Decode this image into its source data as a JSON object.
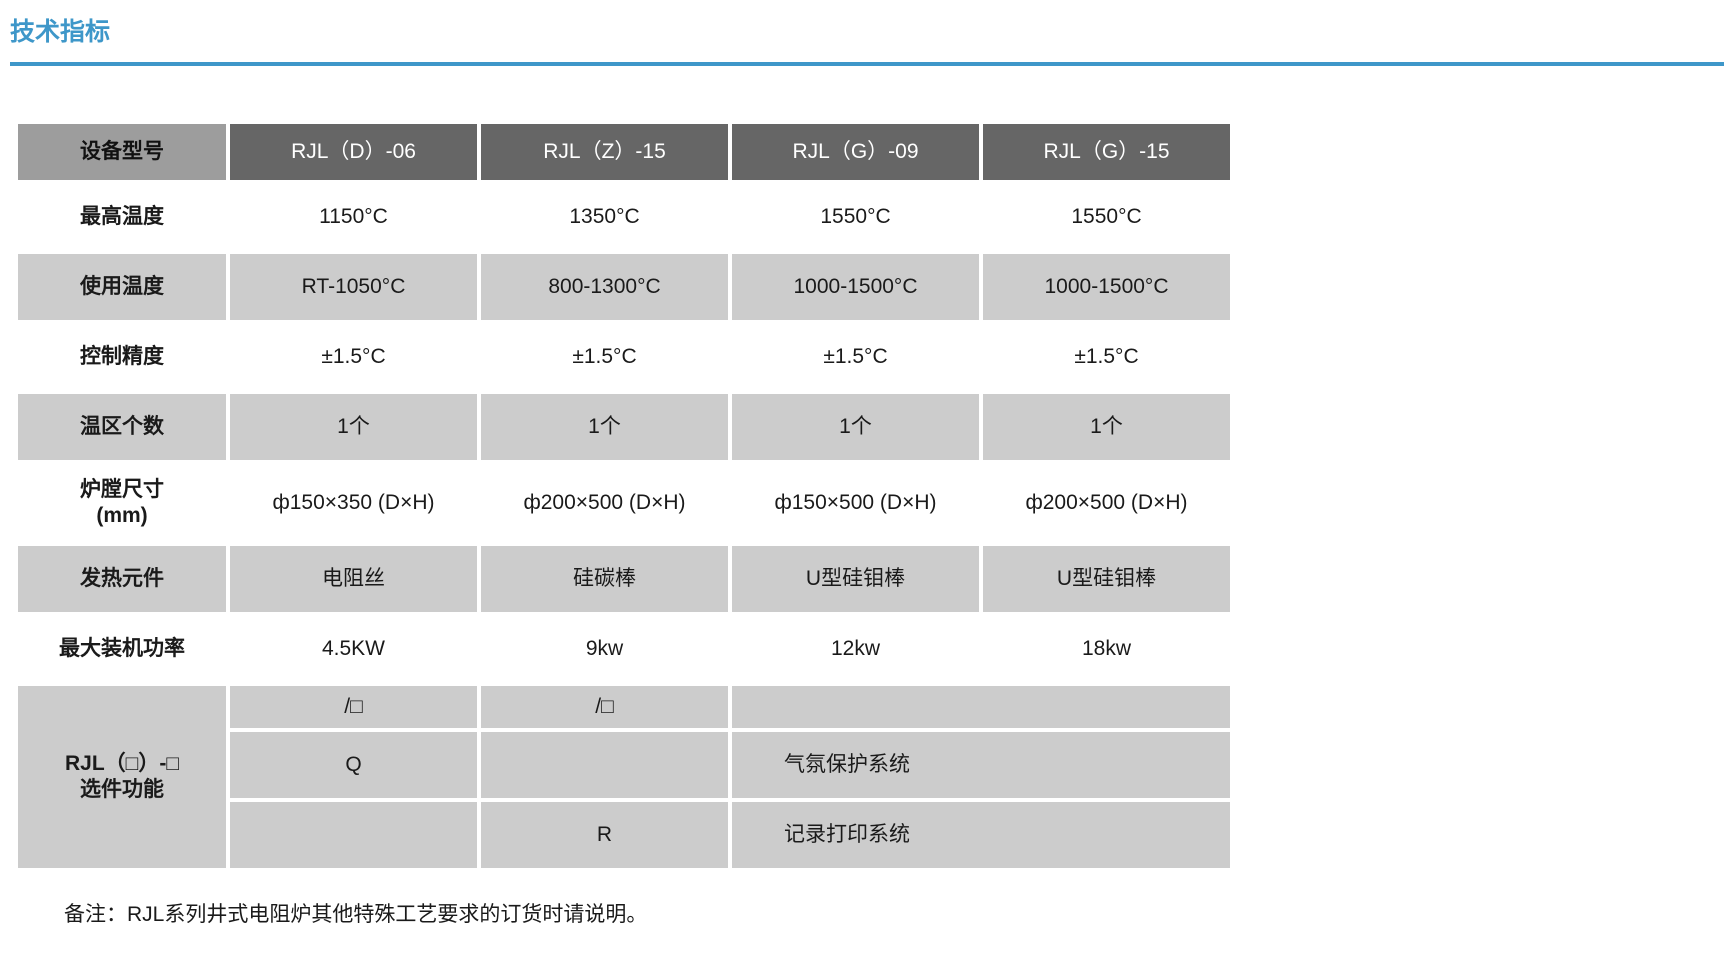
{
  "page": {
    "title": "技术指标",
    "note": "备注：RJL系列井式电阻炉其他特殊工艺要求的订货时请说明。"
  },
  "colors": {
    "accent_blue": "#3e97c9",
    "header_dark_gray": "#666666",
    "header_label_gray": "#9d9d9d",
    "row_gray": "#cccccc",
    "text": "#1a1a1a"
  },
  "table": {
    "header": {
      "label": "设备型号",
      "models": [
        "RJL（D）-06",
        "RJL（Z）-15",
        "RJL（G）-09",
        "RJL（G）-15"
      ]
    },
    "rows": [
      {
        "label": "最高温度",
        "values": [
          "1150°C",
          "1350°C",
          "1550°C",
          "1550°C"
        ]
      },
      {
        "label": "使用温度",
        "values": [
          "RT-1050°C",
          "800-1300°C",
          "1000-1500°C",
          "1000-1500°C"
        ]
      },
      {
        "label": "控制精度",
        "values": [
          "±1.5°C",
          "±1.5°C",
          "±1.5°C",
          "±1.5°C"
        ]
      },
      {
        "label": "温区个数",
        "values": [
          "1个",
          "1个",
          "1个",
          "1个"
        ]
      },
      {
        "label": "炉膛尺寸",
        "label_line2": "(mm)",
        "values": [
          "ф150×350 (D×H)",
          "ф200×500 (D×H)",
          "ф150×500 (D×H)",
          "ф200×500 (D×H)"
        ]
      },
      {
        "label": "发热元件",
        "values": [
          "电阻丝",
          "硅碳棒",
          "U型硅钼棒",
          "U型硅钼棒"
        ]
      },
      {
        "label": "最大装机功率",
        "values": [
          "4.5KW",
          "9kw",
          "12kw",
          "18kw"
        ]
      }
    ],
    "options_section": {
      "label_line1": "RJL（□）-□",
      "label_line2": "选件功能",
      "rows": [
        {
          "col1": "/□",
          "col2": "/□",
          "merged": ""
        },
        {
          "col1": "Q",
          "col2": "",
          "merged": "气氛保护系统"
        },
        {
          "col1": "",
          "col2": "R",
          "merged": "记录打印系统"
        }
      ]
    }
  }
}
